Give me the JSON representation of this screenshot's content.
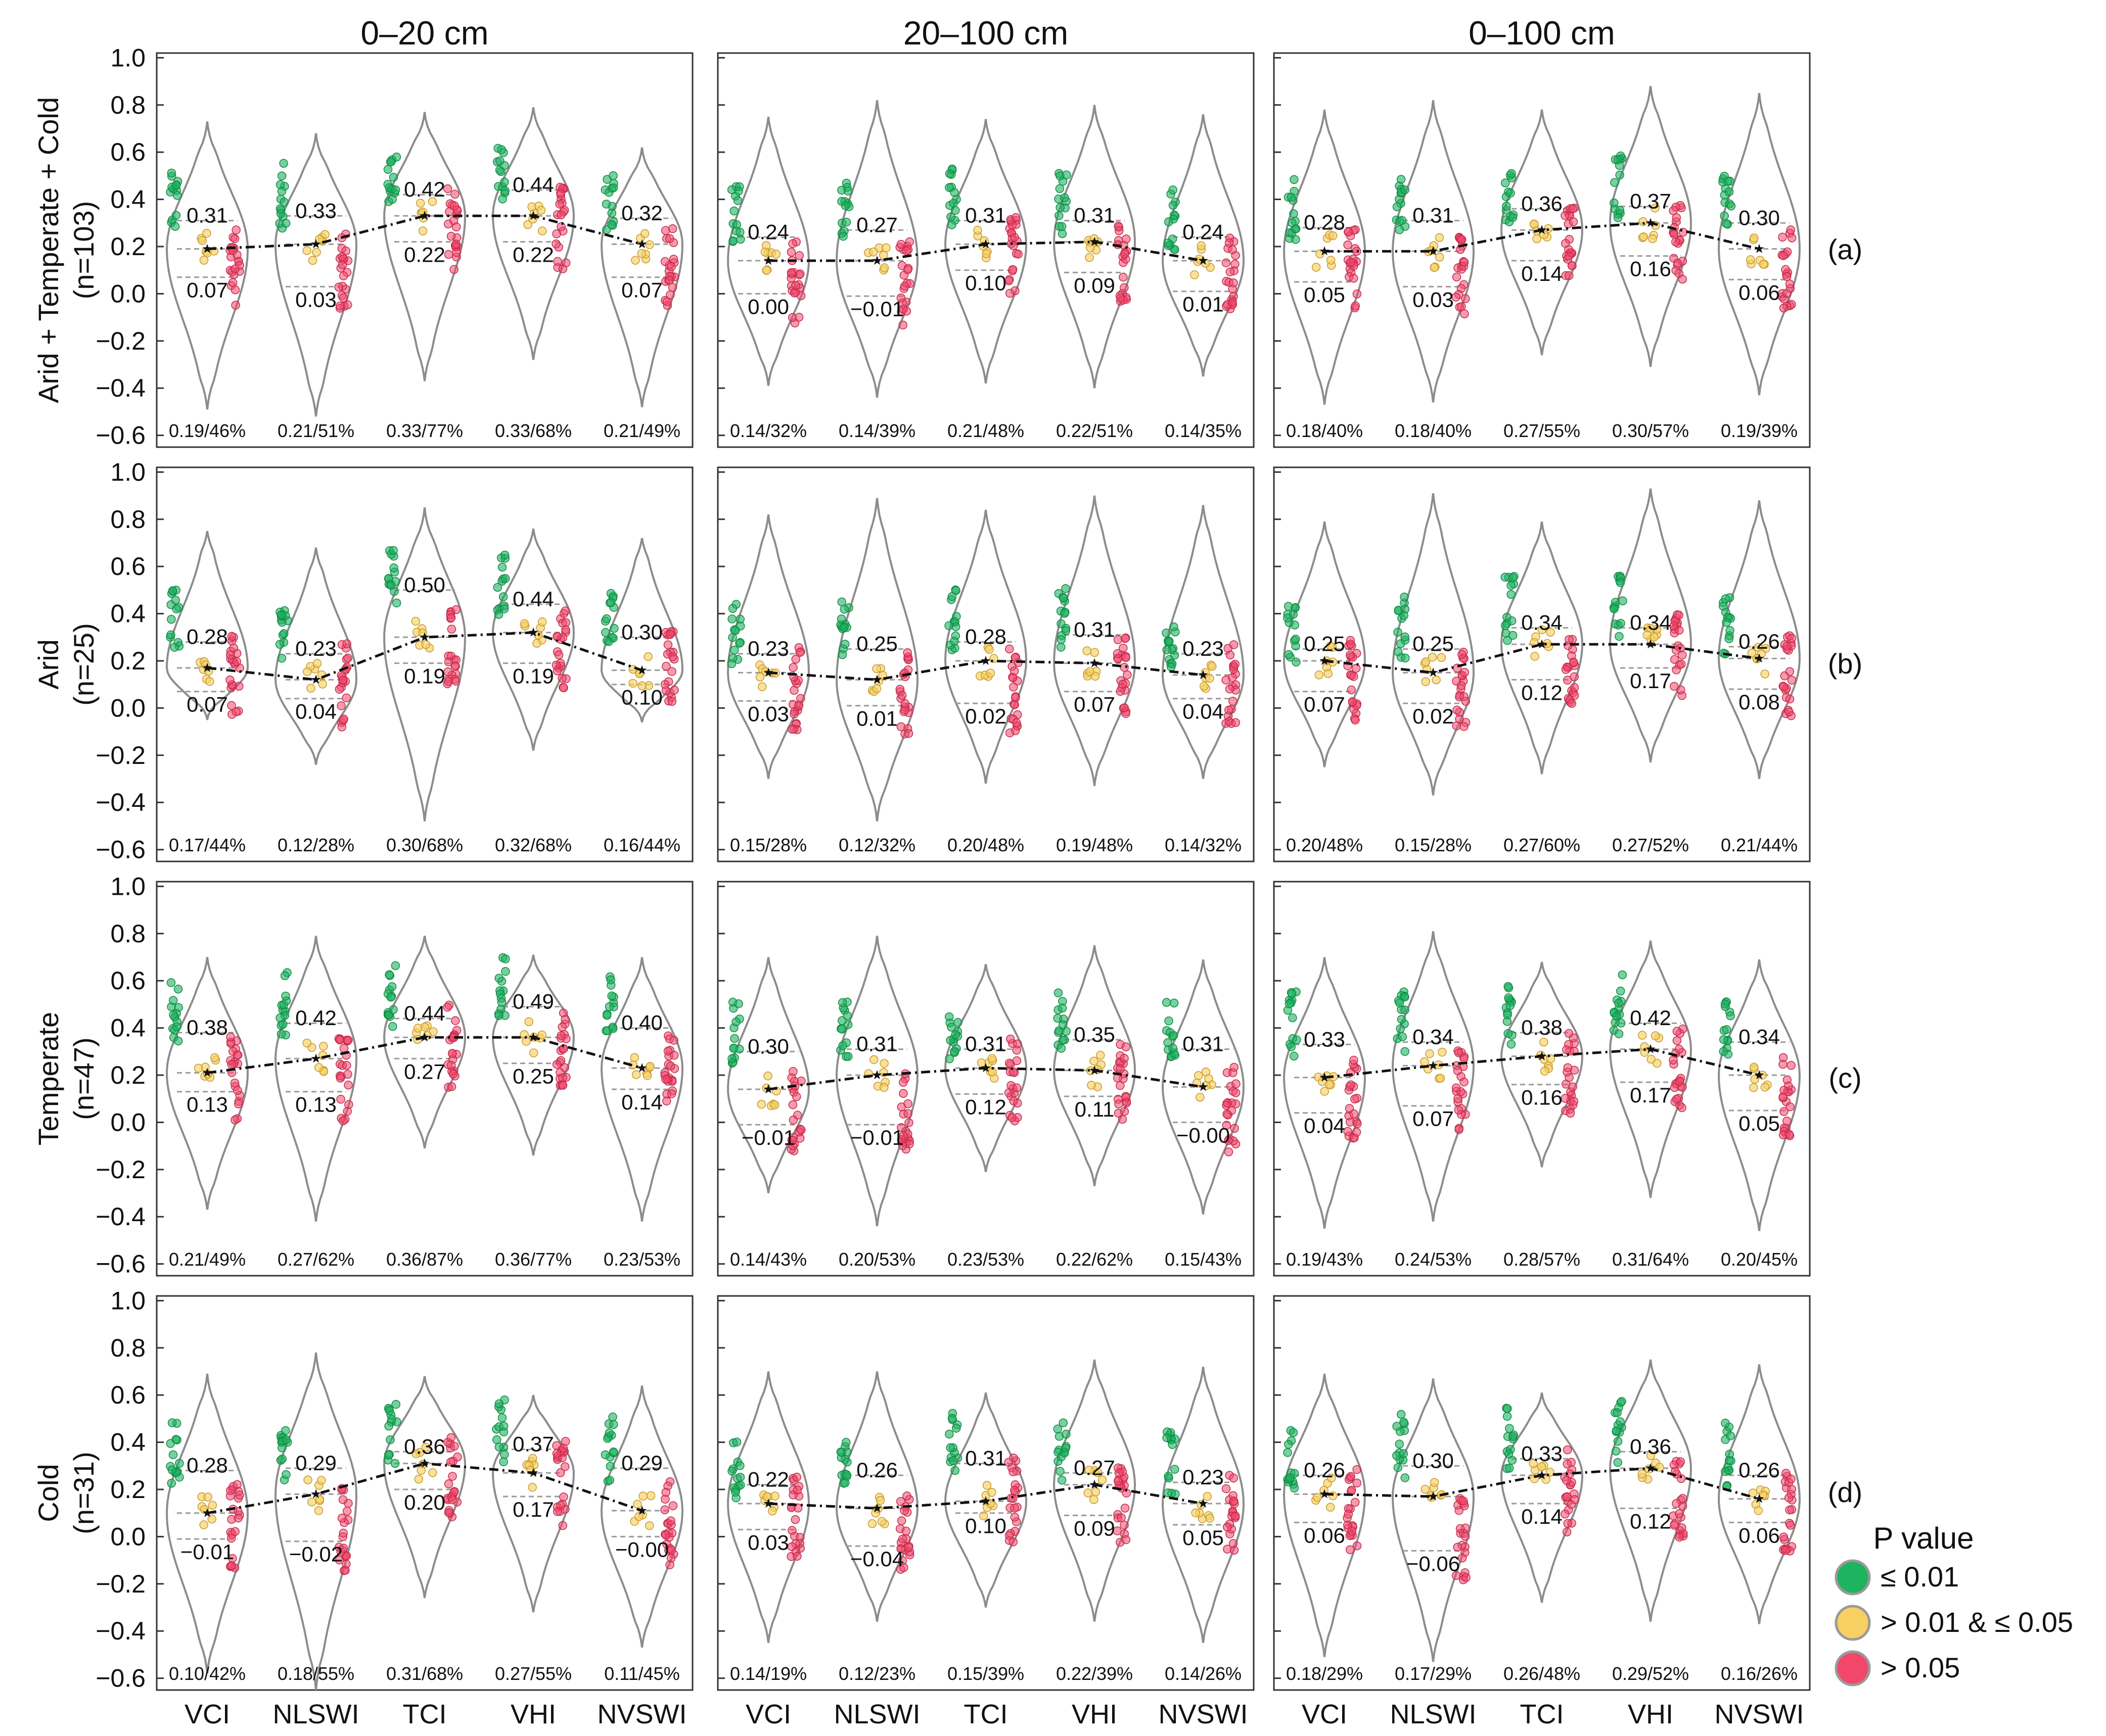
{
  "chart_data": {
    "type": "violin",
    "columns": [
      "0–20 cm",
      "20–100 cm",
      "0–100 cm"
    ],
    "indices": [
      "VCI",
      "NLSWI",
      "TCI",
      "VHI",
      "NVSWI"
    ],
    "rows": [
      {
        "label_lines": [
          "Arid + Temperate + Cold",
          "(n=103)"
        ],
        "panel": "(a)"
      },
      {
        "label_lines": [
          "Arid",
          "(n=25)"
        ],
        "panel": "(b)"
      },
      {
        "label_lines": [
          "Temperate",
          "(n=47)"
        ],
        "panel": "(c)"
      },
      {
        "label_lines": [
          "Cold",
          "(n=31)"
        ],
        "panel": "(d)"
      }
    ],
    "yticks": [
      "1.0",
      "0.8",
      "0.6",
      "0.4",
      "0.2",
      "0.0",
      "−0.2",
      "−0.4",
      "−0.6"
    ],
    "ylim": [
      -0.65,
      1.02
    ],
    "legend": {
      "title": "P value",
      "items": [
        {
          "label": "≤ 0.01",
          "color": "#1db35f"
        },
        {
          "label": "> 0.01 & ≤  0.05",
          "color": "#f7cf62"
        },
        {
          "label": "> 0.05",
          "color": "#f2476b"
        }
      ]
    },
    "panels": [
      [
        {
          "q3": [
            "0.31",
            "0.33",
            "0.42",
            "0.44",
            "0.32"
          ],
          "q1": [
            "0.07",
            "0.03",
            "0.22",
            "0.22",
            "0.07"
          ],
          "stat": [
            "0.19/46%",
            "0.21/51%",
            "0.33/77%",
            "0.33/68%",
            "0.21/49%"
          ],
          "median": [
            0.19,
            0.21,
            0.33,
            0.33,
            0.21
          ],
          "top": [
            0.73,
            0.68,
            0.77,
            0.79,
            0.62
          ],
          "bot": [
            -0.49,
            -0.52,
            -0.37,
            -0.28,
            -0.48
          ]
        },
        {
          "q3": [
            "0.24",
            "0.27",
            "0.31",
            "0.31",
            "0.24"
          ],
          "q1": [
            "0.00",
            "−0.01",
            "0.10",
            "0.09",
            "0.01"
          ],
          "stat": [
            "0.14/32%",
            "0.14/39%",
            "0.21/48%",
            "0.22/51%",
            "0.14/35%"
          ],
          "median": [
            0.14,
            0.14,
            0.21,
            0.22,
            0.14
          ],
          "top": [
            0.75,
            0.82,
            0.74,
            0.8,
            0.76
          ],
          "bot": [
            -0.39,
            -0.44,
            -0.38,
            -0.4,
            -0.35
          ]
        },
        {
          "q3": [
            "0.28",
            "0.31",
            "0.36",
            "0.37",
            "0.30"
          ],
          "q1": [
            "0.05",
            "0.03",
            "0.14",
            "0.16",
            "0.06"
          ],
          "stat": [
            "0.18/40%",
            "0.18/40%",
            "0.27/55%",
            "0.30/57%",
            "0.19/39%"
          ],
          "median": [
            0.18,
            0.18,
            0.27,
            0.3,
            0.19
          ],
          "top": [
            0.78,
            0.82,
            0.78,
            0.88,
            0.85
          ],
          "bot": [
            -0.47,
            -0.46,
            -0.26,
            -0.31,
            -0.43
          ]
        }
      ],
      [
        {
          "q3": [
            "0.28",
            "0.23",
            "0.50",
            "0.44",
            "0.30"
          ],
          "q1": [
            "0.07",
            "0.04",
            "0.19",
            "0.19",
            "0.10"
          ],
          "stat": [
            "0.17/44%",
            "0.12/28%",
            "0.30/68%",
            "0.32/68%",
            "0.16/44%"
          ],
          "median": [
            0.17,
            0.12,
            0.3,
            0.32,
            0.16
          ],
          "top": [
            0.75,
            0.68,
            0.85,
            0.76,
            0.72
          ],
          "bot": [
            -0.05,
            -0.24,
            -0.48,
            -0.18,
            -0.06
          ]
        },
        {
          "q3": [
            "0.23",
            "0.25",
            "0.28",
            "0.31",
            "0.23"
          ],
          "q1": [
            "0.03",
            "0.01",
            "0.02",
            "0.07",
            "0.04"
          ],
          "stat": [
            "0.15/28%",
            "0.12/32%",
            "0.20/48%",
            "0.19/48%",
            "0.14/32%"
          ],
          "median": [
            0.15,
            0.12,
            0.2,
            0.19,
            0.14
          ],
          "top": [
            0.82,
            0.89,
            0.84,
            0.9,
            0.86
          ],
          "bot": [
            -0.3,
            -0.48,
            -0.32,
            -0.33,
            -0.3
          ]
        },
        {
          "q3": [
            "0.25",
            "0.25",
            "0.34",
            "0.34",
            "0.26"
          ],
          "q1": [
            "0.07",
            "0.02",
            "0.12",
            "0.17",
            "0.08"
          ],
          "stat": [
            "0.20/48%",
            "0.15/28%",
            "0.27/60%",
            "0.27/52%",
            "0.21/44%"
          ],
          "median": [
            0.2,
            0.15,
            0.27,
            0.27,
            0.21
          ],
          "top": [
            0.79,
            0.91,
            0.79,
            0.93,
            0.88
          ],
          "bot": [
            -0.25,
            -0.37,
            -0.28,
            -0.23,
            -0.3
          ]
        }
      ],
      [
        {
          "q3": [
            "0.38",
            "0.42",
            "0.44",
            "0.49",
            "0.40"
          ],
          "q1": [
            "0.13",
            "0.13",
            "0.27",
            "0.25",
            "0.14"
          ],
          "stat": [
            "0.21/49%",
            "0.27/62%",
            "0.36/87%",
            "0.36/77%",
            "0.23/53%"
          ],
          "median": [
            0.21,
            0.27,
            0.36,
            0.36,
            0.23
          ],
          "top": [
            0.7,
            0.79,
            0.79,
            0.71,
            0.7
          ],
          "bot": [
            -0.37,
            -0.42,
            -0.11,
            -0.14,
            -0.42
          ]
        },
        {
          "q3": [
            "0.30",
            "0.31",
            "0.31",
            "0.35",
            "0.31"
          ],
          "q1": [
            "−0.01",
            "−0.01",
            "0.12",
            "0.11",
            "−0.00"
          ],
          "stat": [
            "0.14/43%",
            "0.20/53%",
            "0.23/53%",
            "0.22/62%",
            "0.15/43%"
          ],
          "median": [
            0.14,
            0.2,
            0.23,
            0.22,
            0.15
          ],
          "top": [
            0.7,
            0.79,
            0.67,
            0.75,
            0.69
          ],
          "bot": [
            -0.3,
            -0.44,
            -0.21,
            -0.27,
            -0.39
          ]
        },
        {
          "q3": [
            "0.33",
            "0.34",
            "0.38",
            "0.42",
            "0.34"
          ],
          "q1": [
            "0.04",
            "0.07",
            "0.16",
            "0.17",
            "0.05"
          ],
          "stat": [
            "0.19/43%",
            "0.24/53%",
            "0.28/57%",
            "0.31/64%",
            "0.20/45%"
          ],
          "median": [
            0.19,
            0.24,
            0.28,
            0.31,
            0.2
          ],
          "top": [
            0.7,
            0.81,
            0.68,
            0.77,
            0.69
          ],
          "bot": [
            -0.45,
            -0.42,
            -0.19,
            -0.32,
            -0.46
          ]
        }
      ],
      [
        {
          "q3": [
            "0.28",
            "0.29",
            "0.36",
            "0.37",
            "0.29"
          ],
          "q1": [
            "−0.01",
            "−0.02",
            "0.20",
            "0.17",
            "−0.00"
          ],
          "stat": [
            "0.10/42%",
            "0.18/55%",
            "0.31/68%",
            "0.27/55%",
            "0.11/45%"
          ],
          "median": [
            0.1,
            0.18,
            0.31,
            0.27,
            0.11
          ],
          "top": [
            0.69,
            0.78,
            0.68,
            0.6,
            0.64
          ],
          "bot": [
            -0.58,
            -0.65,
            -0.26,
            -0.32,
            -0.47
          ]
        },
        {
          "q3": [
            "0.22",
            "0.26",
            "0.31",
            "0.27",
            "0.23"
          ],
          "q1": [
            "0.03",
            "−0.04",
            "0.10",
            "0.09",
            "0.05"
          ],
          "stat": [
            "0.14/19%",
            "0.12/23%",
            "0.15/39%",
            "0.22/39%",
            "0.14/26%"
          ],
          "median": [
            0.14,
            0.12,
            0.15,
            0.22,
            0.14
          ],
          "top": [
            0.7,
            0.7,
            0.61,
            0.75,
            0.72
          ],
          "bot": [
            -0.45,
            -0.36,
            -0.3,
            -0.36,
            -0.45
          ]
        },
        {
          "q3": [
            "0.26",
            "0.30",
            "0.33",
            "0.36",
            "0.26"
          ],
          "q1": [
            "0.06",
            "−0.06",
            "0.14",
            "0.12",
            "0.06"
          ],
          "stat": [
            "0.18/29%",
            "0.17/29%",
            "0.26/48%",
            "0.29/52%",
            "0.16/26%"
          ],
          "median": [
            0.18,
            0.17,
            0.26,
            0.29,
            0.16
          ],
          "top": [
            0.69,
            0.67,
            0.61,
            0.75,
            0.73
          ],
          "bot": [
            -0.51,
            -0.53,
            -0.28,
            -0.36,
            -0.37
          ]
        }
      ]
    ]
  }
}
